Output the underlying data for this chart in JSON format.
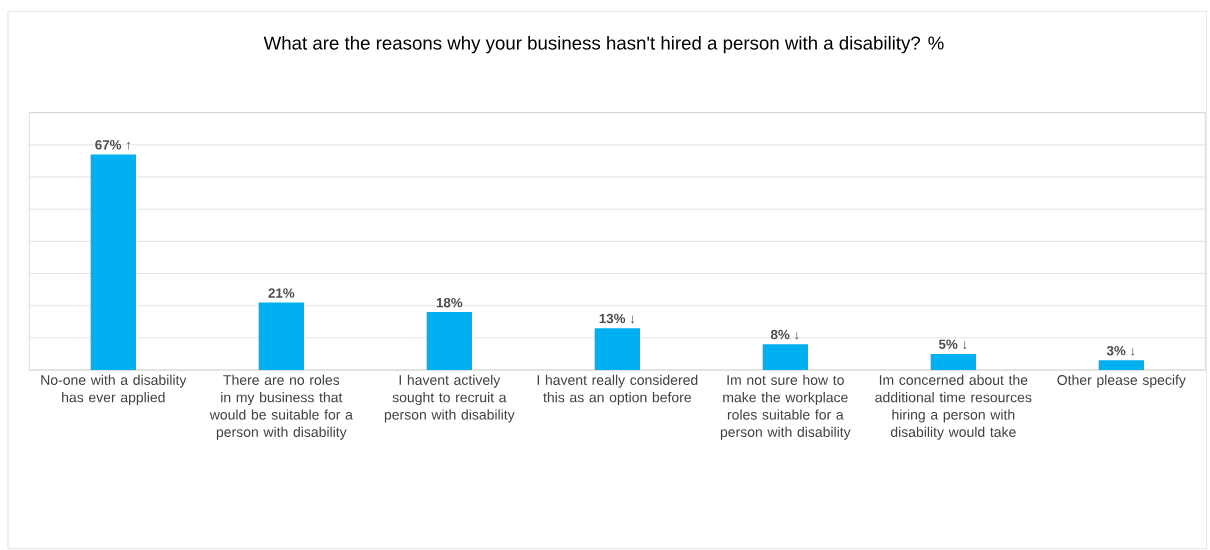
{
  "chart_data": {
    "type": "bar",
    "title": "What are the reasons why your business hasn't hired a person with a disability? %",
    "categories": [
      "No-one with a disability has ever applied",
      "There are no roles in my business that would be suitable for a person with disability",
      "I havent actively sought to recruit a person with disability",
      "I havent really considered this as an option before",
      "Im not sure how to make the workplace roles suitable for a person with disability",
      "Im concerned about the additional time resources hiring a person with disability would take",
      "Other please specify"
    ],
    "values": [
      67,
      21,
      18,
      13,
      8,
      5,
      3
    ],
    "value_labels": [
      "67% ↑",
      "21%",
      "18%",
      "13% ↓",
      "8% ↓",
      "5% ↓",
      "3% ↓"
    ],
    "color": "#00b0f0",
    "ylim": [
      0,
      80
    ],
    "yticks": [
      {
        "value": 0,
        "label": null
      },
      {
        "value": 10,
        "label": null
      },
      {
        "value": 20,
        "label": null
      },
      {
        "value": 30,
        "label": null
      },
      {
        "value": 40,
        "label": null
      },
      {
        "value": 50,
        "label": null
      },
      {
        "value": 60,
        "label": null
      },
      {
        "value": 70,
        "label": null
      },
      {
        "value": 80,
        "label": null
      }
    ],
    "tick_labels": "x",
    "grid": "y"
  }
}
